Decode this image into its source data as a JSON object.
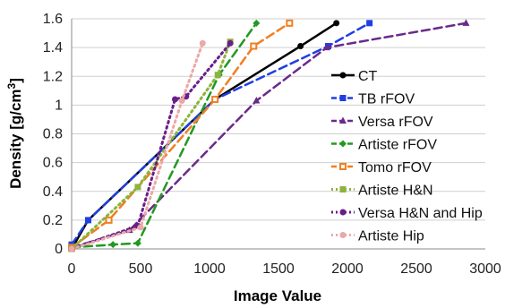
{
  "chart_data": {
    "type": "line",
    "xlabel": "Image Value",
    "ylabel_main": "Density [g/cm",
    "ylabel_sup": "3",
    "ylabel_close": "]",
    "xlim": [
      0,
      3000
    ],
    "ylim": [
      0,
      1.6
    ],
    "xticks": [
      0,
      500,
      1000,
      1500,
      2000,
      2500,
      3000
    ],
    "yticks": [
      0,
      0.2,
      0.4,
      0.6,
      0.8,
      1,
      1.2,
      1.4,
      1.6
    ],
    "grid": "horizontal",
    "legend_position": "right",
    "series": [
      {
        "name": "CT",
        "color": "#000000",
        "dash": "solid",
        "marker": "circle",
        "x": [
          0,
          120,
          1040,
          1660,
          1920
        ],
        "y": [
          0,
          0.2,
          1.04,
          1.41,
          1.57
        ]
      },
      {
        "name": "TB rFOV",
        "color": "#1f3fe0",
        "dash": "long",
        "marker": "square",
        "x": [
          0,
          120,
          1040,
          1860,
          2160
        ],
        "y": [
          0.03,
          0.2,
          1.04,
          1.41,
          1.57
        ]
      },
      {
        "name": "Versa rFOV",
        "color": "#6a2a8a",
        "dash": "long",
        "marker": "triangle",
        "x": [
          0,
          420,
          1340,
          1850,
          2860
        ],
        "y": [
          0.01,
          0.13,
          1.03,
          1.4,
          1.57
        ]
      },
      {
        "name": "Artiste rFOV",
        "color": "#229922",
        "dash": "long",
        "marker": "diamond",
        "x": [
          0,
          300,
          480,
          1070,
          1340
        ],
        "y": [
          0.01,
          0.03,
          0.04,
          1.21,
          1.57
        ]
      },
      {
        "name": "Tomo rFOV",
        "color": "#f07f22",
        "dash": "long",
        "marker": "square-open",
        "x": [
          0,
          270,
          1040,
          1320,
          1580
        ],
        "y": [
          0.01,
          0.2,
          1.04,
          1.41,
          1.57
        ]
      },
      {
        "name": "Artiste H&N",
        "color": "#8cb43c",
        "dash": "dot",
        "marker": "square",
        "x": [
          0,
          480,
          1060,
          1150
        ],
        "y": [
          0,
          0.43,
          1.21,
          1.44
        ]
      },
      {
        "name": "Versa H&N and Hip",
        "color": "#6a1e8a",
        "dash": "dot",
        "marker": "circle",
        "x": [
          0,
          480,
          750,
          830,
          1150
        ],
        "y": [
          0,
          0.16,
          1.04,
          1.06,
          1.43
        ]
      },
      {
        "name": "Artiste Hip",
        "color": "#eba8a8",
        "dash": "dot",
        "marker": "circle",
        "x": [
          0,
          500,
          800,
          950
        ],
        "y": [
          0,
          0.15,
          1.03,
          1.43
        ]
      }
    ]
  }
}
